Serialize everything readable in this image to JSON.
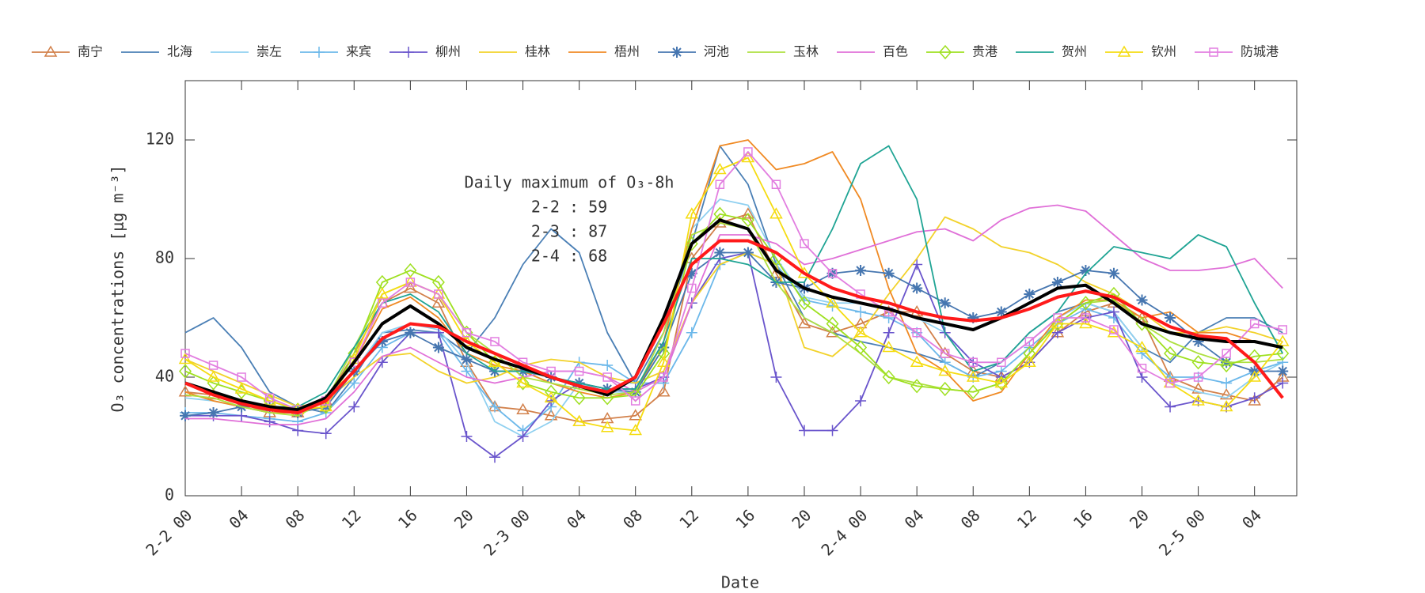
{
  "chart_data": {
    "type": "line",
    "xlabel": "Date",
    "ylabel": "O₃ concentrations [μg m⁻³]",
    "annotation": [
      "Daily maximum of O₃-8h",
      "2-2 : 59",
      "2-3 : 87",
      "2-4 : 68"
    ],
    "x": [
      0,
      2,
      4,
      6,
      8,
      10,
      12,
      14,
      16,
      18,
      20,
      22,
      24,
      26,
      28,
      30,
      32,
      34,
      36,
      38,
      40,
      42,
      44,
      46,
      48,
      50,
      52,
      54,
      56,
      58,
      60,
      62,
      64,
      66,
      68,
      70,
      72,
      74,
      76,
      78
    ],
    "xlim": [
      0,
      79
    ],
    "ylim": [
      0,
      140
    ],
    "xticks": [
      {
        "value": 0,
        "label": "2-2 00"
      },
      {
        "value": 4,
        "label": "04"
      },
      {
        "value": 8,
        "label": "08"
      },
      {
        "value": 12,
        "label": "12"
      },
      {
        "value": 16,
        "label": "16"
      },
      {
        "value": 20,
        "label": "20"
      },
      {
        "value": 24,
        "label": "2-3 00"
      },
      {
        "value": 28,
        "label": "04"
      },
      {
        "value": 32,
        "label": "08"
      },
      {
        "value": 36,
        "label": "12"
      },
      {
        "value": 40,
        "label": "16"
      },
      {
        "value": 44,
        "label": "20"
      },
      {
        "value": 48,
        "label": "2-4 00"
      },
      {
        "value": 52,
        "label": "04"
      },
      {
        "value": 56,
        "label": "08"
      },
      {
        "value": 60,
        "label": "12"
      },
      {
        "value": 64,
        "label": "16"
      },
      {
        "value": 68,
        "label": "20"
      },
      {
        "value": 72,
        "label": "2-5 00"
      },
      {
        "value": 76,
        "label": "04"
      }
    ],
    "yticks": [
      0,
      40,
      80,
      120
    ],
    "series": [
      {
        "name": "南宁",
        "color": "#d2804a",
        "marker": "triangle",
        "values": [
          35,
          34,
          31,
          28,
          28,
          32,
          48,
          65,
          70,
          65,
          45,
          30,
          29,
          27,
          25,
          26,
          27,
          35,
          80,
          92,
          95,
          75,
          58,
          55,
          58,
          62,
          62,
          48,
          42,
          40,
          45,
          55,
          62,
          65,
          60,
          40,
          36,
          34,
          32,
          40
        ]
      },
      {
        "name": "北海",
        "color": "#4a7fb5",
        "values": [
          55,
          60,
          50,
          35,
          30,
          28,
          40,
          55,
          56,
          55,
          48,
          60,
          78,
          90,
          82,
          55,
          38,
          55,
          85,
          118,
          105,
          78,
          60,
          55,
          52,
          50,
          48,
          45,
          40,
          45,
          55,
          62,
          65,
          62,
          50,
          45,
          55,
          60,
          60,
          55
        ]
      },
      {
        "name": "崇左",
        "color": "#8fd0f0",
        "values": [
          33,
          32,
          30,
          28,
          28,
          30,
          42,
          55,
          58,
          56,
          45,
          25,
          20,
          25,
          38,
          35,
          35,
          55,
          90,
          100,
          98,
          80,
          67,
          65,
          65,
          63,
          60,
          55,
          45,
          45,
          52,
          60,
          65,
          62,
          50,
          38,
          35,
          33,
          40,
          45
        ]
      },
      {
        "name": "来宾",
        "color": "#6cb8ea",
        "marker": "plus",
        "values": [
          28,
          28,
          27,
          26,
          25,
          28,
          38,
          50,
          55,
          55,
          42,
          30,
          22,
          30,
          45,
          44,
          38,
          38,
          55,
          78,
          82,
          78,
          66,
          64,
          62,
          60,
          55,
          45,
          40,
          42,
          50,
          58,
          63,
          60,
          48,
          40,
          40,
          38,
          42,
          45
        ]
      },
      {
        "name": "柳州",
        "color": "#6a55cc",
        "marker": "plus",
        "values": [
          27,
          27,
          27,
          25,
          22,
          21,
          30,
          45,
          55,
          55,
          20,
          13,
          20,
          32,
          38,
          36,
          36,
          40,
          65,
          80,
          82,
          40,
          22,
          22,
          32,
          55,
          78,
          55,
          45,
          40,
          45,
          55,
          60,
          62,
          40,
          30,
          32,
          30,
          33,
          38
        ]
      },
      {
        "name": "桂林",
        "color": "#f2d22a",
        "values": [
          46,
          42,
          38,
          34,
          30,
          32,
          40,
          47,
          48,
          42,
          38,
          40,
          44,
          46,
          45,
          40,
          38,
          42,
          65,
          78,
          82,
          78,
          50,
          47,
          55,
          68,
          80,
          94,
          90,
          84,
          82,
          78,
          72,
          68,
          62,
          55,
          55,
          57,
          55,
          52
        ]
      },
      {
        "name": "梧州",
        "color": "#f08a24",
        "values": [
          35,
          32,
          30,
          28,
          28,
          32,
          45,
          63,
          67,
          60,
          48,
          44,
          42,
          38,
          35,
          33,
          35,
          52,
          90,
          118,
          120,
          110,
          112,
          116,
          100,
          70,
          48,
          42,
          32,
          35,
          48,
          60,
          66,
          66,
          60,
          62,
          55,
          55,
          52,
          50
        ]
      },
      {
        "name": "河池",
        "color": "#4676b0",
        "marker": "star",
        "values": [
          27,
          28,
          30,
          30,
          28,
          30,
          42,
          52,
          55,
          50,
          46,
          42,
          42,
          40,
          38,
          36,
          35,
          50,
          75,
          82,
          82,
          72,
          70,
          75,
          76,
          75,
          70,
          65,
          60,
          62,
          68,
          72,
          76,
          75,
          66,
          60,
          52,
          45,
          42,
          42
        ]
      },
      {
        "name": "玉林",
        "color": "#aee040",
        "values": [
          34,
          33,
          30,
          28,
          27,
          32,
          50,
          68,
          72,
          68,
          55,
          48,
          40,
          38,
          36,
          34,
          35,
          55,
          88,
          92,
          90,
          72,
          60,
          55,
          48,
          40,
          38,
          36,
          35,
          38,
          48,
          58,
          65,
          66,
          58,
          52,
          48,
          45,
          45,
          46
        ]
      },
      {
        "name": "百色",
        "color": "#e070d8",
        "values": [
          26,
          26,
          25,
          24,
          24,
          26,
          35,
          47,
          50,
          45,
          40,
          38,
          40,
          42,
          42,
          40,
          35,
          40,
          65,
          88,
          88,
          85,
          78,
          80,
          83,
          86,
          89,
          90,
          86,
          93,
          97,
          98,
          96,
          88,
          80,
          76,
          76,
          77,
          80,
          70
        ]
      },
      {
        "name": "贵港",
        "color": "#9ee020",
        "marker": "diamond",
        "values": [
          42,
          38,
          35,
          32,
          29,
          30,
          48,
          72,
          76,
          72,
          55,
          45,
          38,
          35,
          33,
          33,
          34,
          48,
          85,
          95,
          93,
          80,
          65,
          58,
          50,
          40,
          37,
          36,
          35,
          38,
          48,
          58,
          65,
          68,
          58,
          48,
          45,
          44,
          47,
          48
        ]
      },
      {
        "name": "贺州",
        "color": "#1fa494",
        "values": [
          38,
          35,
          32,
          30,
          30,
          35,
          50,
          65,
          68,
          62,
          48,
          42,
          42,
          40,
          38,
          36,
          36,
          52,
          80,
          80,
          78,
          72,
          72,
          90,
          112,
          118,
          100,
          55,
          42,
          45,
          55,
          62,
          75,
          84,
          82,
          80,
          88,
          84,
          65,
          48
        ]
      },
      {
        "name": "钦州",
        "color": "#f5dc10",
        "marker": "triangle",
        "values": [
          46,
          40,
          36,
          32,
          29,
          30,
          46,
          68,
          72,
          68,
          52,
          45,
          38,
          33,
          25,
          23,
          22,
          45,
          95,
          110,
          114,
          95,
          75,
          65,
          55,
          50,
          45,
          42,
          40,
          38,
          45,
          58,
          58,
          55,
          50,
          38,
          32,
          30,
          40,
          52
        ]
      },
      {
        "name": "防城港",
        "color": "#e27ee0",
        "marker": "square",
        "values": [
          48,
          44,
          40,
          33,
          29,
          32,
          45,
          65,
          72,
          68,
          55,
          52,
          45,
          42,
          42,
          40,
          32,
          40,
          70,
          105,
          116,
          105,
          85,
          75,
          68,
          62,
          55,
          48,
          45,
          45,
          52,
          60,
          60,
          56,
          43,
          38,
          40,
          48,
          58,
          56
        ]
      },
      {
        "color": "#000000",
        "width": 4,
        "values": [
          38,
          35,
          32,
          30,
          29,
          33,
          45,
          58,
          64,
          58,
          50,
          46,
          43,
          40,
          37,
          34,
          40,
          60,
          85,
          93,
          90,
          76,
          70,
          67,
          65,
          63,
          60,
          58,
          56,
          60,
          65,
          70,
          71,
          65,
          58,
          55,
          53,
          52,
          52,
          50
        ]
      },
      {
        "color": "#ff1a1a",
        "width": 4,
        "values": [
          38,
          34,
          31,
          29,
          28,
          32,
          42,
          53,
          58,
          57,
          52,
          48,
          44,
          40,
          37,
          35,
          40,
          58,
          78,
          86,
          86,
          82,
          75,
          70,
          67,
          65,
          62,
          60,
          59,
          60,
          63,
          67,
          69,
          67,
          62,
          57,
          54,
          53,
          45,
          33
        ]
      }
    ]
  }
}
